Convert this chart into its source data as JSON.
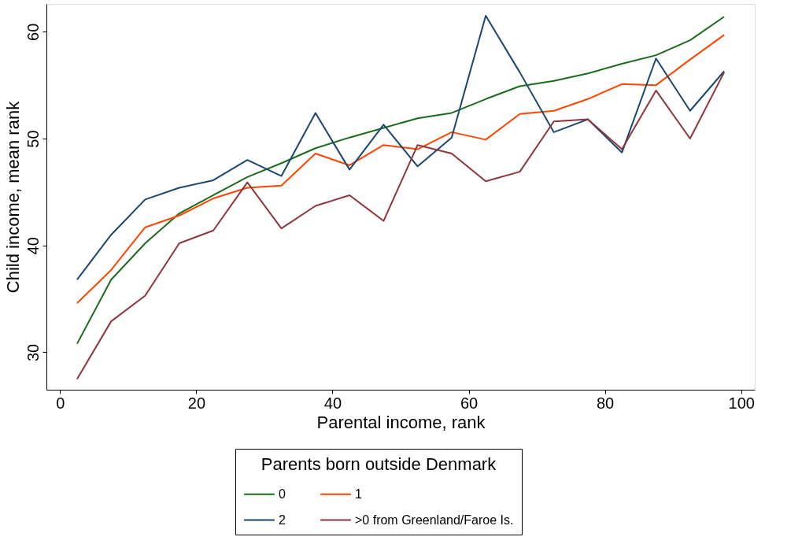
{
  "chart_data": {
    "type": "line",
    "xlabel": "Parental income, rank",
    "ylabel": "Child income, mean rank",
    "legend_title": "Parents born outside Denmark",
    "x": [
      2.5,
      7.5,
      12.5,
      17.5,
      22.5,
      27.5,
      32.5,
      37.5,
      42.5,
      47.5,
      52.5,
      57.5,
      62.5,
      67.5,
      72.5,
      77.5,
      82.5,
      87.5,
      92.5,
      97.5
    ],
    "series": [
      {
        "name": "0",
        "color": "#1a6b1a",
        "values": [
          30.8,
          36.8,
          40.2,
          43.0,
          44.7,
          46.4,
          47.7,
          49.1,
          50.1,
          51.0,
          51.9,
          52.4,
          53.7,
          54.9,
          55.4,
          56.1,
          57.0,
          57.8,
          59.2,
          61.4
        ]
      },
      {
        "name": "1",
        "color": "#ff4500",
        "values": [
          34.6,
          37.7,
          41.7,
          42.8,
          44.4,
          45.4,
          45.6,
          48.6,
          47.5,
          49.4,
          49.0,
          50.6,
          49.9,
          52.3,
          52.6,
          53.7,
          55.1,
          55.0,
          57.4,
          59.7
        ]
      },
      {
        "name": "2",
        "color": "#1a476f",
        "values": [
          36.8,
          41.0,
          44.3,
          45.4,
          46.1,
          48.0,
          46.5,
          52.4,
          47.1,
          51.3,
          47.4,
          50.1,
          61.5,
          56.2,
          50.6,
          51.8,
          48.7,
          57.5,
          52.6,
          56.3
        ]
      },
      {
        "name": ">0 from Greenland/Faroe Is.",
        "color": "#90353b",
        "values": [
          27.5,
          32.9,
          35.3,
          40.2,
          41.4,
          45.9,
          41.6,
          43.7,
          44.7,
          42.3,
          49.4,
          48.6,
          46.0,
          46.9,
          51.6,
          51.8,
          49.0,
          54.5,
          50.0,
          56.2
        ]
      }
    ],
    "xlim": [
      -2,
      102
    ],
    "ylim": [
      26.5,
      62.6
    ],
    "xticks": [
      0,
      20,
      40,
      60,
      80,
      100
    ],
    "yticks": [
      30,
      40,
      50,
      60
    ],
    "grid": false,
    "legend": "bottom",
    "marker": "none",
    "line_style": "solid"
  }
}
